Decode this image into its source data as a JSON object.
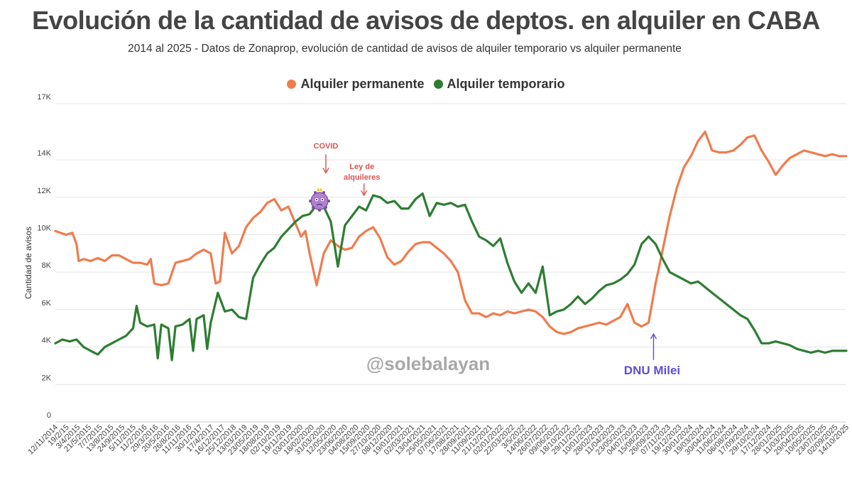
{
  "chart_data": {
    "type": "line",
    "title": "Evolución de la cantidad de avisos de deptos. en alquiler en CABA",
    "subtitle": "2014 al 2025 - Datos de Zonaprop, evolución de cantidad de avisos de  alquiler temporario vs alquiler permanente",
    "ylabel": "Cantidad de avisos",
    "ylim": [
      0,
      17000
    ],
    "yticks": [
      0,
      2000,
      4000,
      6000,
      8000,
      10000,
      12000,
      14000,
      17000
    ],
    "ytick_labels": [
      "0",
      "2K",
      "4K",
      "6K",
      "8K",
      "10K",
      "12K",
      "14K",
      "17K"
    ],
    "grid": true,
    "legend_position": "top",
    "x_labels": [
      "12/11/2014",
      "19/2/15",
      "3/4/2015",
      "21/5/2015",
      "7/7/2015",
      "13/8/2015",
      "24/9/2015",
      "5/11/2015",
      "11/2/2016",
      "29/3/2016",
      "20/5/2016",
      "26/8/2016",
      "11/11/2016",
      "30/1/2017",
      "17/4/2017",
      "16/12/2017",
      "25/12/2018",
      "13/03/2019",
      "23/05/2019",
      "18/08/2019",
      "02/10/2019",
      "19/11/2019",
      "03/01/2020",
      "18/02/2020",
      "31/03/2020",
      "12/05/2020",
      "23/06/2020",
      "04/08/2020",
      "15/09/2020",
      "27/10/2020",
      "08/12/2020",
      "19/01/2021",
      "02/03/2021",
      "13/04/2021",
      "25/05/2021",
      "07/06/2021",
      "17/08/2021",
      "28/09/2021",
      "11/09/2021",
      "21/12/2021",
      "02/01/2022",
      "22/03/2022",
      "3/5/2022",
      "14/06/2022",
      "26/07/2022",
      "09/06/2022",
      "18/10/2022",
      "29/11/2022",
      "10/01/2023",
      "28/02/2023",
      "11/04/2023",
      "23/05/2023",
      "04/07/2023",
      "15/08/2023",
      "26/09/2023",
      "07/11/2023",
      "19/12/2023",
      "30/01/2024",
      "19/03/2024",
      "30/04/2024",
      "11/06/2024",
      "06/08/2024",
      "17/09/2024",
      "29/10/2024",
      "17/12/2024",
      "28/01/2025",
      "11/03/2025",
      "29/04/2025",
      "10/05/2025",
      "23/07/2025",
      "02/09/2025",
      "14/10/2025"
    ],
    "series": [
      {
        "name": "Alquiler permanente",
        "color": "#ef7c4d",
        "points": [
          [
            0,
            10200
          ],
          [
            1.5,
            10000
          ],
          [
            2.4,
            10100
          ],
          [
            3,
            9500
          ],
          [
            3.3,
            8600
          ],
          [
            4,
            8700
          ],
          [
            5,
            8600
          ],
          [
            6,
            8750
          ],
          [
            7,
            8600
          ],
          [
            8,
            8900
          ],
          [
            9,
            8900
          ],
          [
            10,
            8700
          ],
          [
            11,
            8500
          ],
          [
            12,
            8500
          ],
          [
            13,
            8400
          ],
          [
            13.5,
            8700
          ],
          [
            14,
            7400
          ],
          [
            15,
            7300
          ],
          [
            16,
            7400
          ],
          [
            17,
            8500
          ],
          [
            18,
            8600
          ],
          [
            19,
            8700
          ],
          [
            20,
            9000
          ],
          [
            21,
            9200
          ],
          [
            22,
            9000
          ],
          [
            22.7,
            7400
          ],
          [
            23.3,
            7500
          ],
          [
            24,
            10100
          ],
          [
            25,
            9000
          ],
          [
            26,
            9400
          ],
          [
            27,
            10400
          ],
          [
            28,
            10900
          ],
          [
            29,
            11200
          ],
          [
            30,
            11700
          ],
          [
            31,
            11900
          ],
          [
            32,
            11300
          ],
          [
            33,
            11500
          ],
          [
            34,
            10600
          ],
          [
            34.8,
            9900
          ],
          [
            35.4,
            10200
          ],
          [
            36,
            9000
          ],
          [
            37,
            7300
          ],
          [
            38,
            9000
          ],
          [
            39,
            9700
          ],
          [
            40,
            9400
          ],
          [
            41,
            9200
          ],
          [
            42,
            9300
          ],
          [
            43,
            9900
          ],
          [
            44,
            10200
          ],
          [
            45,
            10400
          ],
          [
            46,
            9800
          ],
          [
            47,
            8800
          ],
          [
            48,
            8400
          ],
          [
            49,
            8600
          ],
          [
            50,
            9100
          ],
          [
            51,
            9500
          ],
          [
            52,
            9600
          ],
          [
            53,
            9600
          ],
          [
            54,
            9300
          ],
          [
            55,
            9000
          ],
          [
            56,
            8600
          ],
          [
            57,
            8000
          ],
          [
            58,
            6500
          ],
          [
            59,
            5800
          ],
          [
            60,
            5800
          ],
          [
            61,
            5600
          ],
          [
            62,
            5800
          ],
          [
            63,
            5700
          ],
          [
            64,
            5900
          ],
          [
            65,
            5800
          ],
          [
            66,
            5900
          ],
          [
            67,
            6000
          ],
          [
            68,
            5900
          ],
          [
            69,
            5600
          ],
          [
            70,
            5100
          ],
          [
            71,
            4800
          ],
          [
            72,
            4700
          ],
          [
            73,
            4800
          ],
          [
            74,
            5000
          ],
          [
            75,
            5100
          ],
          [
            76,
            5200
          ],
          [
            77,
            5300
          ],
          [
            78,
            5200
          ],
          [
            79,
            5400
          ],
          [
            80,
            5600
          ],
          [
            81,
            6300
          ],
          [
            82,
            5300
          ],
          [
            83,
            5100
          ],
          [
            84,
            5300
          ],
          [
            85,
            7400
          ],
          [
            86,
            9200
          ],
          [
            87,
            11000
          ],
          [
            88,
            12500
          ],
          [
            89,
            13600
          ],
          [
            90,
            14200
          ],
          [
            91,
            15000
          ],
          [
            92,
            15500
          ],
          [
            93,
            14500
          ],
          [
            94,
            14400
          ],
          [
            95,
            14400
          ],
          [
            96,
            14500
          ],
          [
            97,
            14800
          ],
          [
            98,
            15200
          ],
          [
            99,
            15300
          ],
          [
            100,
            14500
          ],
          [
            101,
            13900
          ],
          [
            102,
            13200
          ],
          [
            103,
            13700
          ],
          [
            104,
            14100
          ],
          [
            105,
            14300
          ],
          [
            106,
            14500
          ],
          [
            107,
            14400
          ],
          [
            108,
            14300
          ],
          [
            109,
            14200
          ],
          [
            110,
            14300
          ],
          [
            111,
            14200
          ],
          [
            112,
            14200
          ]
        ]
      },
      {
        "name": "Alquiler temporario",
        "color": "#2e7d32",
        "points": [
          [
            0,
            4200
          ],
          [
            1,
            4400
          ],
          [
            2,
            4300
          ],
          [
            3,
            4400
          ],
          [
            4,
            4000
          ],
          [
            5,
            3800
          ],
          [
            6,
            3600
          ],
          [
            7,
            4000
          ],
          [
            8,
            4200
          ],
          [
            9,
            4400
          ],
          [
            10,
            4600
          ],
          [
            11,
            5000
          ],
          [
            11.5,
            6200
          ],
          [
            12,
            5300
          ],
          [
            13,
            5100
          ],
          [
            14,
            5200
          ],
          [
            14.5,
            3400
          ],
          [
            15,
            5200
          ],
          [
            16,
            5000
          ],
          [
            16.5,
            3300
          ],
          [
            17,
            5100
          ],
          [
            18,
            5200
          ],
          [
            19,
            5500
          ],
          [
            19.5,
            3800
          ],
          [
            20,
            5500
          ],
          [
            21,
            5700
          ],
          [
            21.5,
            3900
          ],
          [
            22,
            5300
          ],
          [
            23,
            6900
          ],
          [
            24,
            5900
          ],
          [
            25,
            6000
          ],
          [
            26,
            5600
          ],
          [
            27,
            5500
          ],
          [
            28,
            7700
          ],
          [
            29,
            8400
          ],
          [
            30,
            9000
          ],
          [
            31,
            9300
          ],
          [
            32,
            9900
          ],
          [
            33,
            10300
          ],
          [
            34,
            10700
          ],
          [
            35,
            11000
          ],
          [
            36,
            11100
          ],
          [
            37,
            11600
          ],
          [
            38,
            11500
          ],
          [
            39,
            10700
          ],
          [
            40,
            8300
          ],
          [
            41,
            10500
          ],
          [
            42,
            11000
          ],
          [
            43,
            11500
          ],
          [
            44,
            11300
          ],
          [
            45,
            12100
          ],
          [
            46,
            12000
          ],
          [
            47,
            11700
          ],
          [
            48,
            11800
          ],
          [
            49,
            11400
          ],
          [
            50,
            11400
          ],
          [
            51,
            11900
          ],
          [
            52,
            12200
          ],
          [
            53,
            11000
          ],
          [
            54,
            11700
          ],
          [
            55,
            11600
          ],
          [
            56,
            11700
          ],
          [
            57,
            11500
          ],
          [
            58,
            11600
          ],
          [
            59,
            10700
          ],
          [
            60,
            9900
          ],
          [
            61,
            9700
          ],
          [
            62,
            9400
          ],
          [
            63,
            9800
          ],
          [
            64,
            8500
          ],
          [
            65,
            7500
          ],
          [
            66,
            6900
          ],
          [
            67,
            7400
          ],
          [
            68,
            6900
          ],
          [
            69,
            8300
          ],
          [
            70,
            5700
          ],
          [
            71,
            5900
          ],
          [
            72,
            6000
          ],
          [
            73,
            6300
          ],
          [
            74,
            6700
          ],
          [
            75,
            6300
          ],
          [
            76,
            6600
          ],
          [
            77,
            7000
          ],
          [
            78,
            7300
          ],
          [
            79,
            7400
          ],
          [
            80,
            7600
          ],
          [
            81,
            7900
          ],
          [
            82,
            8400
          ],
          [
            83,
            9500
          ],
          [
            84,
            9900
          ],
          [
            85,
            9500
          ],
          [
            86,
            8700
          ],
          [
            87,
            8000
          ],
          [
            88,
            7800
          ],
          [
            89,
            7600
          ],
          [
            90,
            7400
          ],
          [
            91,
            7500
          ],
          [
            92,
            7200
          ],
          [
            93,
            6900
          ],
          [
            94,
            6600
          ],
          [
            95,
            6300
          ],
          [
            96,
            6000
          ],
          [
            97,
            5700
          ],
          [
            98,
            5500
          ],
          [
            99,
            4900
          ],
          [
            100,
            4200
          ],
          [
            101,
            4200
          ],
          [
            102,
            4300
          ],
          [
            103,
            4200
          ],
          [
            104,
            4100
          ],
          [
            105,
            3900
          ],
          [
            106,
            3800
          ],
          [
            107,
            3700
          ],
          [
            108,
            3800
          ],
          [
            109,
            3700
          ],
          [
            110,
            3800
          ],
          [
            111,
            3800
          ],
          [
            112,
            3800
          ]
        ]
      }
    ],
    "annotations": [
      {
        "text": "COVID",
        "x": 38.3,
        "y": 14600,
        "arrow_to": 13300
      },
      {
        "text_lines": [
          "Ley de",
          "alquileres"
        ],
        "x": 43.4,
        "y": 13500,
        "arrow_to": 12100
      },
      {
        "text": "DNU Milei",
        "x": 84.5,
        "y": 2550,
        "arrow_to": 4700
      }
    ],
    "covid_icon": "virus-icon",
    "watermark": "@solebalayan"
  }
}
